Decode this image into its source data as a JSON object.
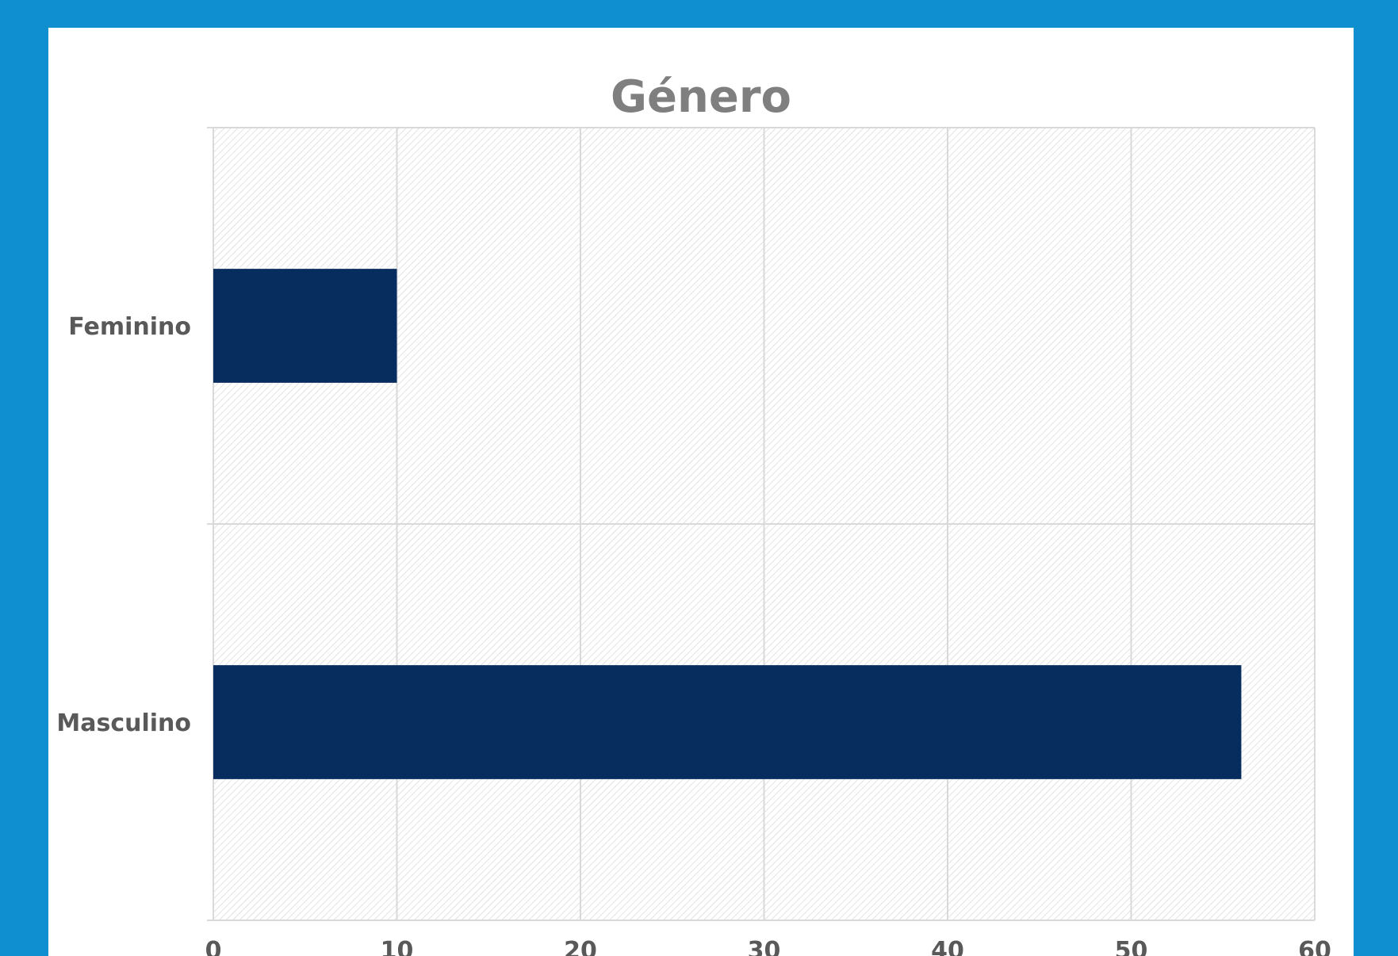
{
  "chart_data": {
    "type": "bar",
    "orientation": "horizontal",
    "title": "Género",
    "categories": [
      "Feminino",
      "Masculino"
    ],
    "values": [
      10,
      56
    ],
    "xlim": [
      0,
      60
    ],
    "xticks": [
      "0",
      "10",
      "20",
      "30",
      "40",
      "50",
      "60"
    ],
    "xlabel": "",
    "ylabel": "",
    "grid": true,
    "bar_color": "#062d5e",
    "background_color": "#0f8fd0"
  }
}
